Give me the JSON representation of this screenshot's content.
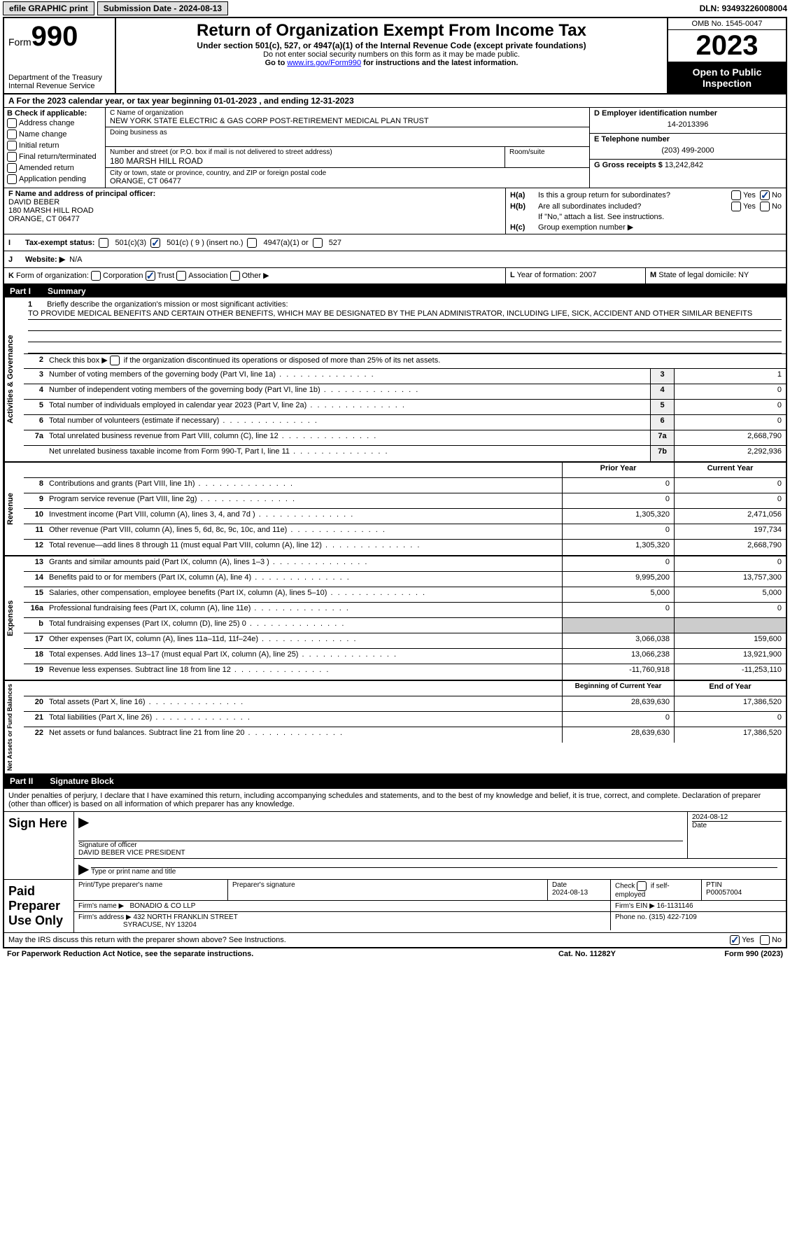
{
  "topbar": {
    "efile": "efile GRAPHIC print",
    "submission": "Submission Date - 2024-08-13",
    "dln": "DLN: 93493226008004"
  },
  "header": {
    "form_label": "Form",
    "form_num": "990",
    "dept": "Department of the Treasury\nInternal Revenue Service",
    "title": "Return of Organization Exempt From Income Tax",
    "sub": "Under section 501(c), 527, or 4947(a)(1) of the Internal Revenue Code (except private foundations)",
    "small1": "Do not enter social security numbers on this form as it may be made public.",
    "small2_pre": "Go to ",
    "small2_link": "www.irs.gov/Form990",
    "small2_post": " for instructions and the latest information.",
    "omb": "OMB No. 1545-0047",
    "year": "2023",
    "open": "Open to Public Inspection"
  },
  "rowA": "A For the 2023 calendar year, or tax year beginning 01-01-2023    , and ending 12-31-2023",
  "colB": {
    "title": "B Check if applicable:",
    "items": [
      "Address change",
      "Name change",
      "Initial return",
      "Final return/terminated",
      "Amended return",
      "Application pending"
    ]
  },
  "colC": {
    "name_lbl": "C Name of organization",
    "name": "NEW YORK STATE ELECTRIC & GAS CORP POST-RETIREMENT MEDICAL PLAN TRUST",
    "dba_lbl": "Doing business as",
    "dba": "",
    "addr_lbl": "Number and street (or P.O. box if mail is not delivered to street address)",
    "addr": "180 MARSH HILL ROAD",
    "room_lbl": "Room/suite",
    "city_lbl": "City or town, state or province, country, and ZIP or foreign postal code",
    "city": "ORANGE, CT  06477"
  },
  "colD": {
    "ein_lbl": "D Employer identification number",
    "ein": "14-2013396",
    "tel_lbl": "E Telephone number",
    "tel": "(203) 499-2000",
    "gross_lbl": "G Gross receipts $",
    "gross": "13,242,842"
  },
  "colF": {
    "lbl": "F Name and address of principal officer:",
    "name": "DAVID BEBER",
    "addr1": "180 MARSH HILL ROAD",
    "addr2": "ORANGE, CT  06477"
  },
  "colH": {
    "a_lbl": "H(a)",
    "a_txt": "Is this a group return for subordinates?",
    "b_lbl": "H(b)",
    "b_txt": "Are all subordinates included?",
    "b_note": "If \"No,\" attach a list. See instructions.",
    "c_lbl": "H(c)",
    "c_txt": "Group exemption number ▶",
    "yes": "Yes",
    "no": "No"
  },
  "rowI": {
    "lbl": "I",
    "txt": "Tax-exempt status:",
    "o1": "501(c)(3)",
    "o2": "501(c) ( 9 ) (insert no.)",
    "o3": "4947(a)(1) or",
    "o4": "527"
  },
  "rowJ": {
    "lbl": "J",
    "txt": "Website: ▶",
    "val": "N/A"
  },
  "rowK": {
    "lbl": "K",
    "txt": "Form of organization:",
    "o1": "Corporation",
    "o2": "Trust",
    "o3": "Association",
    "o4": "Other ▶"
  },
  "rowL": {
    "lbl": "L",
    "txt": "Year of formation: 2007"
  },
  "rowM": {
    "lbl": "M",
    "txt": "State of legal domicile: NY"
  },
  "part1": {
    "num": "Part I",
    "title": "Summary"
  },
  "mission": {
    "lbl": "1",
    "intro": "Briefly describe the organization's mission or most significant activities:",
    "text": "TO PROVIDE MEDICAL BENEFITS AND CERTAIN OTHER BENEFITS, WHICH MAY BE DESIGNATED BY THE PLAN ADMINISTRATOR, INCLUDING LIFE, SICK, ACCIDENT AND OTHER SIMILAR BENEFITS"
  },
  "line2": "Check this box ▶       if the organization discontinued its operations or disposed of more than 25% of its net assets.",
  "gov": {
    "vtitle": "Activities & Governance",
    "rows": [
      {
        "n": "3",
        "d": "Number of voting members of the governing body (Part VI, line 1a)",
        "box": "3",
        "v": "1"
      },
      {
        "n": "4",
        "d": "Number of independent voting members of the governing body (Part VI, line 1b)",
        "box": "4",
        "v": "0"
      },
      {
        "n": "5",
        "d": "Total number of individuals employed in calendar year 2023 (Part V, line 2a)",
        "box": "5",
        "v": "0"
      },
      {
        "n": "6",
        "d": "Total number of volunteers (estimate if necessary)",
        "box": "6",
        "v": "0"
      },
      {
        "n": "7a",
        "d": "Total unrelated business revenue from Part VIII, column (C), line 12",
        "box": "7a",
        "v": "2,668,790"
      },
      {
        "n": "",
        "d": "Net unrelated business taxable income from Form 990-T, Part I, line 11",
        "box": "7b",
        "v": "2,292,936"
      }
    ]
  },
  "hdr_pc": {
    "prior": "Prior Year",
    "current": "Current Year"
  },
  "rev": {
    "vtitle": "Revenue",
    "rows": [
      {
        "n": "8",
        "d": "Contributions and grants (Part VIII, line 1h)",
        "p": "0",
        "c": "0"
      },
      {
        "n": "9",
        "d": "Program service revenue (Part VIII, line 2g)",
        "p": "0",
        "c": "0"
      },
      {
        "n": "10",
        "d": "Investment income (Part VIII, column (A), lines 3, 4, and 7d )",
        "p": "1,305,320",
        "c": "2,471,056"
      },
      {
        "n": "11",
        "d": "Other revenue (Part VIII, column (A), lines 5, 6d, 8c, 9c, 10c, and 11e)",
        "p": "0",
        "c": "197,734"
      },
      {
        "n": "12",
        "d": "Total revenue—add lines 8 through 11 (must equal Part VIII, column (A), line 12)",
        "p": "1,305,320",
        "c": "2,668,790"
      }
    ]
  },
  "exp": {
    "vtitle": "Expenses",
    "rows": [
      {
        "n": "13",
        "d": "Grants and similar amounts paid (Part IX, column (A), lines 1–3 )",
        "p": "0",
        "c": "0"
      },
      {
        "n": "14",
        "d": "Benefits paid to or for members (Part IX, column (A), line 4)",
        "p": "9,995,200",
        "c": "13,757,300"
      },
      {
        "n": "15",
        "d": "Salaries, other compensation, employee benefits (Part IX, column (A), lines 5–10)",
        "p": "5,000",
        "c": "5,000"
      },
      {
        "n": "16a",
        "d": "Professional fundraising fees (Part IX, column (A), line 11e)",
        "p": "0",
        "c": "0"
      },
      {
        "n": "b",
        "d": "Total fundraising expenses (Part IX, column (D), line 25) 0",
        "p": "",
        "c": "",
        "shade": true
      },
      {
        "n": "17",
        "d": "Other expenses (Part IX, column (A), lines 11a–11d, 11f–24e)",
        "p": "3,066,038",
        "c": "159,600"
      },
      {
        "n": "18",
        "d": "Total expenses. Add lines 13–17 (must equal Part IX, column (A), line 25)",
        "p": "13,066,238",
        "c": "13,921,900"
      },
      {
        "n": "19",
        "d": "Revenue less expenses. Subtract line 18 from line 12",
        "p": "-11,760,918",
        "c": "-11,253,110"
      }
    ]
  },
  "hdr_by": {
    "beg": "Beginning of Current Year",
    "end": "End of Year"
  },
  "net": {
    "vtitle": "Net Assets or Fund Balances",
    "rows": [
      {
        "n": "20",
        "d": "Total assets (Part X, line 16)",
        "p": "28,639,630",
        "c": "17,386,520"
      },
      {
        "n": "21",
        "d": "Total liabilities (Part X, line 26)",
        "p": "0",
        "c": "0"
      },
      {
        "n": "22",
        "d": "Net assets or fund balances. Subtract line 21 from line 20",
        "p": "28,639,630",
        "c": "17,386,520"
      }
    ]
  },
  "part2": {
    "num": "Part II",
    "title": "Signature Block"
  },
  "sig": {
    "intro": "Under penalties of perjury, I declare that I have examined this return, including accompanying schedules and statements, and to the best of my knowledge and belief, it is true, correct, and complete. Declaration of preparer (other than officer) is based on all information of which preparer has any knowledge.",
    "sign_here": "Sign Here",
    "sig_officer_lbl": "Signature of officer",
    "officer": "DAVID BEBER VICE PRESIDENT",
    "type_lbl": "Type or print name and title",
    "date_lbl": "Date",
    "date1": "2024-08-12",
    "paid": "Paid Preparer Use Only",
    "prep_name_lbl": "Print/Type preparer's name",
    "prep_sig_lbl": "Preparer's signature",
    "date2": "2024-08-13",
    "check_lbl": "Check        if self-employed",
    "ptin_lbl": "PTIN",
    "ptin": "P00057004",
    "firm_name_lbl": "Firm's name    ▶",
    "firm_name": "BONADIO & CO LLP",
    "firm_ein_lbl": "Firm's EIN ▶",
    "firm_ein": "16-1131146",
    "firm_addr_lbl": "Firm's address ▶",
    "firm_addr1": "432 NORTH FRANKLIN STREET",
    "firm_addr2": "SYRACUSE, NY  13204",
    "phone_lbl": "Phone no.",
    "phone": "(315) 422-7109",
    "may": "May the IRS discuss this return with the preparer shown above? See Instructions."
  },
  "footer": {
    "f1": "For Paperwork Reduction Act Notice, see the separate instructions.",
    "f2": "Cat. No. 11282Y",
    "f3": "Form 990 (2023)"
  }
}
